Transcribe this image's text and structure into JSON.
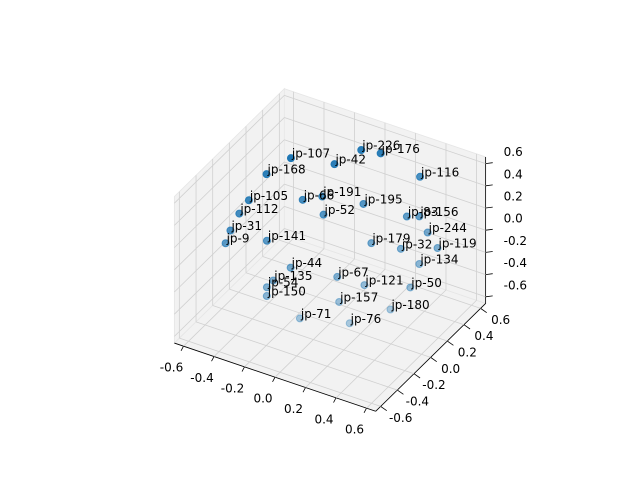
{
  "chart_data": {
    "type": "scatter3d",
    "labels": [
      "jp-226",
      "jp-176",
      "jp-107",
      "jp-42",
      "jp-168",
      "jp-116",
      "jp-105",
      "jp-66",
      "jp-191",
      "jp-195",
      "jp-112",
      "jp-52",
      "jp-83",
      "jp-156",
      "jp-31",
      "jp-244",
      "jp-9",
      "jp-141",
      "jp-179",
      "jp-32",
      "jp-119",
      "jp-44",
      "jp-134",
      "jp-67",
      "jp-135",
      "jp-54",
      "jp-121",
      "jp-50",
      "jp-150",
      "jp-157",
      "jp-180",
      "jp-71",
      "jp-76"
    ],
    "x": [
      -0.03,
      0.07,
      -0.36,
      -0.14,
      -0.46,
      0.29,
      -0.51,
      -0.25,
      -0.16,
      0.05,
      -0.54,
      -0.13,
      0.28,
      0.34,
      -0.56,
      0.4,
      -0.57,
      -0.37,
      0.14,
      0.29,
      0.47,
      -0.22,
      0.4,
      0.02,
      -0.29,
      -0.31,
      0.16,
      0.39,
      -0.3,
      0.06,
      0.32,
      -0.11,
      0.14
    ],
    "y": [
      0.43,
      0.48,
      0.19,
      0.31,
      0.08,
      0.55,
      -0.04,
      0.13,
      0.2,
      0.31,
      -0.1,
      0.16,
      0.41,
      0.45,
      -0.17,
      0.44,
      -0.21,
      -0.08,
      0.24,
      0.32,
      0.43,
      -0.07,
      0.34,
      0.05,
      -0.15,
      -0.19,
      0.12,
      0.25,
      -0.21,
      0.0,
      0.14,
      -0.16,
      -0.02
    ],
    "z": [
      0.57,
      0.55,
      0.52,
      0.48,
      0.41,
      0.39,
      0.24,
      0.24,
      0.26,
      0.21,
      0.15,
      0.14,
      0.13,
      0.13,
      0.04,
      0.02,
      -0.05,
      -0.03,
      -0.05,
      -0.09,
      -0.08,
      -0.21,
      -0.19,
      -0.27,
      -0.3,
      -0.34,
      -0.33,
      -0.34,
      -0.4,
      -0.44,
      -0.49,
      -0.55,
      -0.58
    ],
    "color": "#1f77b4",
    "xlim": [
      -0.66,
      0.66
    ],
    "ylim": [
      -0.66,
      0.66
    ],
    "zlim": [
      -0.66,
      0.66
    ],
    "xticks": [
      -0.6,
      -0.4,
      -0.2,
      {
        "value": 0,
        "label": "0.0"
      },
      0.2,
      0.4,
      0.6
    ],
    "yticks": [
      -0.6,
      -0.4,
      -0.2,
      {
        "value": 0,
        "label": "0.0"
      },
      0.2,
      0.4,
      0.6
    ],
    "zticks": [
      -0.6,
      -0.4,
      -0.2,
      {
        "value": 0,
        "label": "0.0"
      },
      0.2,
      0.4,
      0.6
    ],
    "grid": true
  }
}
